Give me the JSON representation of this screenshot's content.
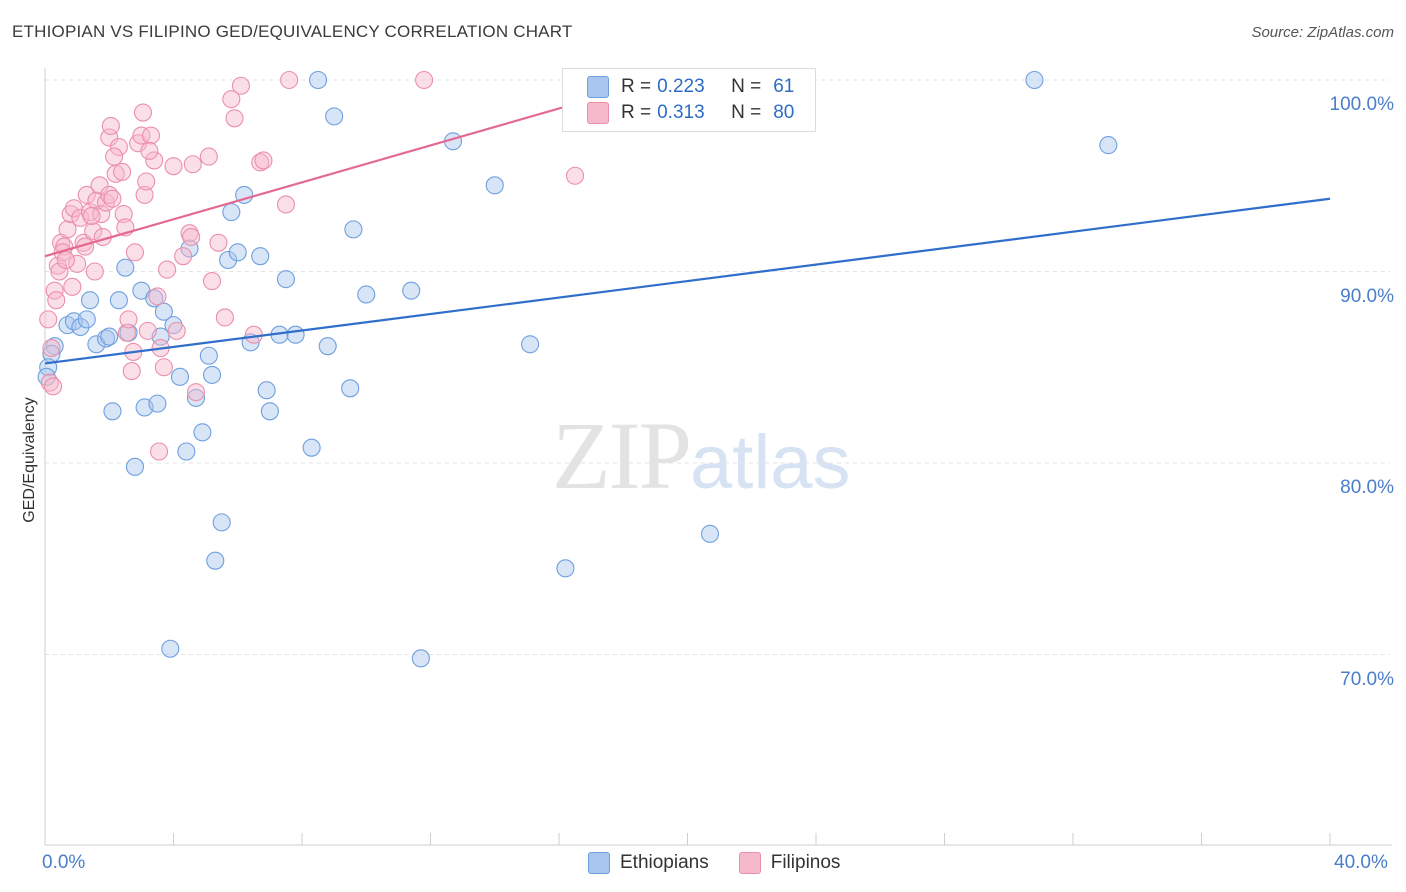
{
  "title": "ETHIOPIAN VS FILIPINO GED/EQUIVALENCY CORRELATION CHART",
  "source": "Source: ZipAtlas.com",
  "watermark": {
    "zip": "ZIP",
    "atlas": "atlas"
  },
  "legend_top": [
    {
      "r_label": "R =",
      "r_value": "0.223",
      "n_label": "N =",
      "n_value": "61",
      "color": "#a9c6ee"
    },
    {
      "r_label": "R =",
      "r_value": "0.313",
      "n_label": "N =",
      "n_value": "80",
      "color": "#f6b8cb"
    }
  ],
  "legend_bottom": [
    {
      "name": "Ethiopians",
      "color": "#a9c6ee"
    },
    {
      "name": "Filipinos",
      "color": "#f6b8cb"
    }
  ],
  "chart_data": {
    "type": "scatter",
    "title": "ETHIOPIAN VS FILIPINO GED/EQUIVALENCY CORRELATION CHART",
    "xlabel": "",
    "ylabel": "GED/Equivalency",
    "xlim": [
      0,
      40
    ],
    "ylim": [
      61,
      101
    ],
    "x_tick_labels": [
      "0.0%",
      "40.0%"
    ],
    "y_ticks": [
      70,
      80,
      90,
      100
    ],
    "y_tick_labels": [
      "70.0%",
      "80.0%",
      "90.0%",
      "100.0%"
    ],
    "grid": true,
    "series": [
      {
        "name": "Ethiopians",
        "color": "#a9c6ee",
        "stroke": "#6f9fdf",
        "trend": {
          "x": [
            0,
            40
          ],
          "y": [
            85.2,
            93.8
          ],
          "color": "#2f6ecb"
        },
        "points": [
          [
            0.3,
            86.1
          ],
          [
            0.2,
            85.7
          ],
          [
            0.7,
            87.2
          ],
          [
            0.9,
            87.4
          ],
          [
            1.1,
            87.1
          ],
          [
            1.3,
            87.5
          ],
          [
            1.4,
            88.5
          ],
          [
            1.6,
            86.2
          ],
          [
            1.9,
            86.5
          ],
          [
            2.0,
            86.6
          ],
          [
            2.1,
            82.7
          ],
          [
            2.3,
            88.5
          ],
          [
            2.5,
            90.2
          ],
          [
            2.6,
            86.8
          ],
          [
            2.8,
            79.8
          ],
          [
            3.0,
            89.0
          ],
          [
            3.1,
            82.9
          ],
          [
            3.4,
            88.6
          ],
          [
            3.5,
            83.1
          ],
          [
            3.6,
            86.6
          ],
          [
            3.7,
            87.9
          ],
          [
            4.0,
            87.2
          ],
          [
            4.2,
            84.5
          ],
          [
            4.4,
            80.6
          ],
          [
            4.5,
            91.2
          ],
          [
            4.7,
            83.4
          ],
          [
            4.9,
            81.6
          ],
          [
            5.1,
            85.6
          ],
          [
            5.2,
            84.6
          ],
          [
            5.5,
            76.9
          ],
          [
            5.3,
            74.9
          ],
          [
            5.7,
            90.6
          ],
          [
            5.8,
            93.1
          ],
          [
            6.0,
            91.0
          ],
          [
            6.2,
            94.0
          ],
          [
            6.4,
            86.3
          ],
          [
            6.7,
            90.8
          ],
          [
            6.9,
            83.8
          ],
          [
            7.0,
            82.7
          ],
          [
            7.3,
            86.7
          ],
          [
            7.5,
            89.6
          ],
          [
            7.8,
            86.7
          ],
          [
            8.3,
            80.8
          ],
          [
            8.5,
            100.0
          ],
          [
            8.8,
            86.1
          ],
          [
            9.0,
            98.1
          ],
          [
            9.5,
            83.9
          ],
          [
            9.6,
            92.2
          ],
          [
            10.0,
            88.8
          ],
          [
            3.9,
            70.3
          ],
          [
            11.4,
            89.0
          ],
          [
            11.7,
            69.8
          ],
          [
            12.7,
            96.8
          ],
          [
            14.0,
            94.5
          ],
          [
            15.1,
            86.2
          ],
          [
            16.2,
            74.5
          ],
          [
            20.7,
            76.3
          ],
          [
            30.8,
            100.0
          ],
          [
            33.1,
            96.6
          ],
          [
            0.1,
            85.0
          ],
          [
            0.05,
            84.5
          ]
        ]
      },
      {
        "name": "Filipinos",
        "color": "#f6b8cb",
        "stroke": "#ec8fab",
        "trend": {
          "x": [
            0,
            19.5
          ],
          "y": [
            90.8,
            100.2
          ],
          "color": "#e4698f"
        },
        "points": [
          [
            0.1,
            87.5
          ],
          [
            0.15,
            84.2
          ],
          [
            0.2,
            86.0
          ],
          [
            0.3,
            89.0
          ],
          [
            0.4,
            90.3
          ],
          [
            0.5,
            91.5
          ],
          [
            0.6,
            91.3
          ],
          [
            0.7,
            92.2
          ],
          [
            0.8,
            93.0
          ],
          [
            0.85,
            89.2
          ],
          [
            0.9,
            93.3
          ],
          [
            1.0,
            90.4
          ],
          [
            1.1,
            92.8
          ],
          [
            1.2,
            91.5
          ],
          [
            1.3,
            94.0
          ],
          [
            1.4,
            93.1
          ],
          [
            1.5,
            92.1
          ],
          [
            1.55,
            90.0
          ],
          [
            1.6,
            93.7
          ],
          [
            1.7,
            94.5
          ],
          [
            1.75,
            93.0
          ],
          [
            1.8,
            91.8
          ],
          [
            1.9,
            93.6
          ],
          [
            2.0,
            94.0
          ],
          [
            2.1,
            93.8
          ],
          [
            2.0,
            97.0
          ],
          [
            2.05,
            97.6
          ],
          [
            2.2,
            95.1
          ],
          [
            2.3,
            96.5
          ],
          [
            2.4,
            95.2
          ],
          [
            2.45,
            93.0
          ],
          [
            2.5,
            92.3
          ],
          [
            2.55,
            86.8
          ],
          [
            2.6,
            87.5
          ],
          [
            2.7,
            84.8
          ],
          [
            2.75,
            85.8
          ],
          [
            2.8,
            91.0
          ],
          [
            2.9,
            96.7
          ],
          [
            3.0,
            97.1
          ],
          [
            3.05,
            98.3
          ],
          [
            3.1,
            94.0
          ],
          [
            3.15,
            94.7
          ],
          [
            3.2,
            86.9
          ],
          [
            3.3,
            97.1
          ],
          [
            3.4,
            95.8
          ],
          [
            3.5,
            88.7
          ],
          [
            3.55,
            80.6
          ],
          [
            3.6,
            86.0
          ],
          [
            3.7,
            85.0
          ],
          [
            3.8,
            90.1
          ],
          [
            4.0,
            95.5
          ],
          [
            4.1,
            86.9
          ],
          [
            4.3,
            90.8
          ],
          [
            4.5,
            92.0
          ],
          [
            4.6,
            95.6
          ],
          [
            4.7,
            83.7
          ],
          [
            5.1,
            96.0
          ],
          [
            5.2,
            89.5
          ],
          [
            5.4,
            91.5
          ],
          [
            5.6,
            87.6
          ],
          [
            5.8,
            99.0
          ],
          [
            5.9,
            98.0
          ],
          [
            6.1,
            99.7
          ],
          [
            6.5,
            86.7
          ],
          [
            6.7,
            95.7
          ],
          [
            6.8,
            95.8
          ],
          [
            7.6,
            100.0
          ],
          [
            7.5,
            93.5
          ],
          [
            11.8,
            100.0
          ],
          [
            16.5,
            95.0
          ],
          [
            0.25,
            84.0
          ],
          [
            0.35,
            88.5
          ],
          [
            0.45,
            90.0
          ],
          [
            0.55,
            91.0
          ],
          [
            1.25,
            91.3
          ],
          [
            2.15,
            96.0
          ],
          [
            3.25,
            96.3
          ],
          [
            4.55,
            91.8
          ],
          [
            0.65,
            90.6
          ],
          [
            1.45,
            92.9
          ]
        ]
      }
    ]
  }
}
